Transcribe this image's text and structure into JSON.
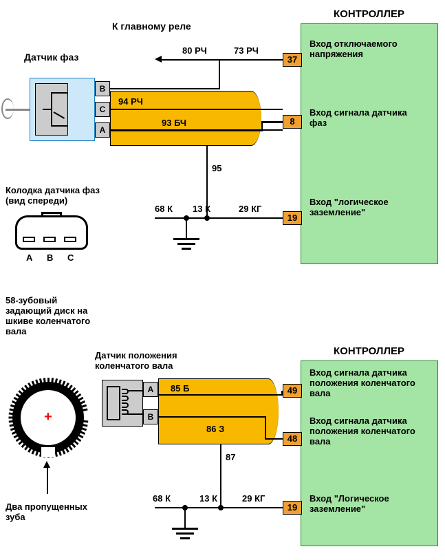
{
  "upper": {
    "controller_title": "КОНТРОЛЛЕР",
    "to_relay": "К главному реле",
    "sensor_label": "Датчик фаз",
    "pins": {
      "b": "B",
      "c": "C",
      "a": "A"
    },
    "wires": {
      "w80": "80 РЧ",
      "w73": "73 РЧ",
      "w94": "94 РЧ",
      "w93": "93 БЧ",
      "w95": "95",
      "w13": "13 К",
      "w68": "68 К",
      "w29": "29 КГ"
    },
    "pin37": "37",
    "pin37_label": "Вход отключаемого напряжения",
    "pin8": "8",
    "pin8_label": "Вход сигнала датчика фаз",
    "pin19": "19",
    "pin19_label": "Вход \"логическое заземление\"",
    "connector_title": "Колодка датчика фаз (вид спереди)",
    "conn_pins": {
      "a": "A",
      "b": "B",
      "c": "C"
    }
  },
  "lower": {
    "controller_title": "КОНТРОЛЛЕР",
    "disk_label": "58-зубовый задающий диск на шкиве коленчатого вала",
    "missing_teeth": "Два пропущенных зуба",
    "sensor_label": "Датчик положения коленчатого вала",
    "pins": {
      "a": "A",
      "b": "B"
    },
    "wires": {
      "w85": "85 Б",
      "w86": "86 З",
      "w87": "87",
      "w13": "13 К",
      "w68": "68 К",
      "w29": "29 КГ"
    },
    "pin49": "49",
    "pin49_label": "Вход сигнала датчика положения коленчатого вала",
    "pin48": "48",
    "pin48_label": "Вход сигнала датчика положения коленчатого вала",
    "pin19": "19",
    "pin19_label": "Вход \"Логическое заземление\""
  },
  "style": {
    "controller_bg": "#a4e4a4",
    "controller_border": "#228b22",
    "pin_bg": "#f0a030",
    "shield_bg": "#f8b800",
    "sensor_bg": "#cde8f8",
    "font_label": 13,
    "font_title": 15,
    "font_pin": 12,
    "font_wire": 13
  }
}
